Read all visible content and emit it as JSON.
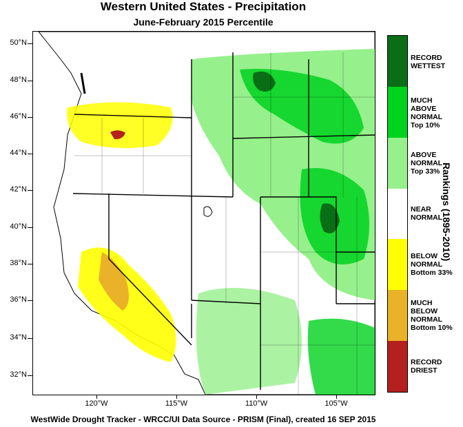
{
  "title": "Western United States - Precipitation",
  "subtitle": "June-February 2015 Percentile",
  "footer": "WestWide Drought Tracker - WRCC/UI  Data Source - PRISM (Final), created 16 SEP 2015",
  "legend": {
    "title": "Rankings (1895-2010)",
    "classes": [
      {
        "label": "RECORD\nWETTEST",
        "color": "#0a6e16"
      },
      {
        "label": "MUCH\nABOVE\nNORMAL\nTop 10%",
        "color": "#00d21e"
      },
      {
        "label": "ABOVE\nNORMAL\nTop 33%",
        "color": "#96f08c"
      },
      {
        "label": "NEAR\nNORMAL",
        "color": "#ffffff"
      },
      {
        "label": "BELOW\nNORMAL\nBottom 33%",
        "color": "#ffff00"
      },
      {
        "label": "MUCH\nBELOW\nNORMAL\nBottom 10%",
        "color": "#eab228"
      },
      {
        "label": "RECORD\nDRIEST",
        "color": "#b4201e"
      }
    ]
  },
  "axes": {
    "lat_labels": [
      "50°N",
      "48°N",
      "46°N",
      "44°N",
      "42°N",
      "40°N",
      "38°N",
      "36°N",
      "34°N",
      "32°N"
    ],
    "lon_labels": [
      "120°W",
      "115°W",
      "110°W",
      "105°W"
    ]
  },
  "colors": {
    "ocean": "#ffffff",
    "border": "#000000"
  }
}
